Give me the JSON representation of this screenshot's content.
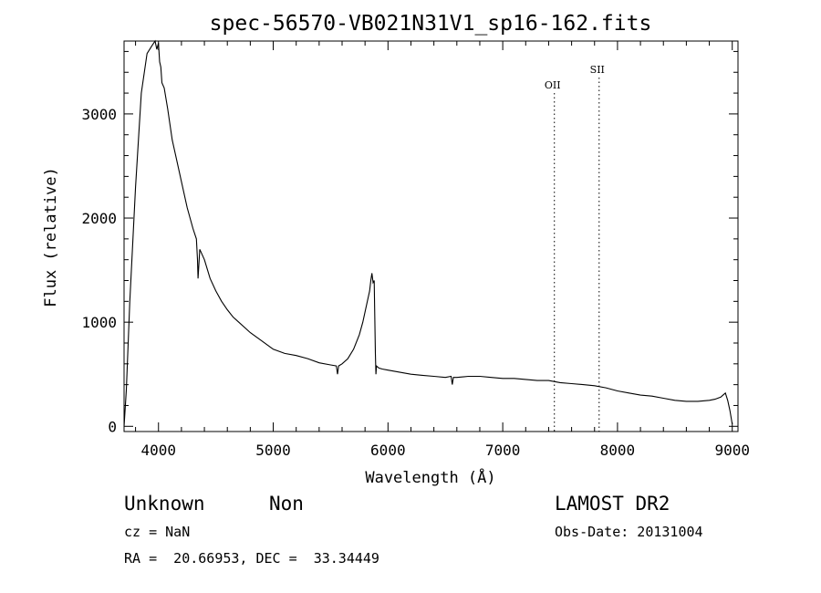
{
  "chart_data": {
    "type": "line",
    "title": "spec-56570-VB021N31V1_sp16-162.fits",
    "xlabel": "Wavelength (Å)",
    "ylabel": "Flux (relative)",
    "xlim": [
      3700,
      9050
    ],
    "ylim": [
      -50,
      3700
    ],
    "x_ticks": [
      4000,
      5000,
      6000,
      7000,
      8000,
      9000
    ],
    "y_ticks": [
      0,
      1000,
      2000,
      3000
    ],
    "grid": false,
    "series": [
      {
        "x": [
          3700,
          3720,
          3750,
          3800,
          3850,
          3900,
          3940,
          3970,
          3985,
          4000,
          4010,
          4020,
          4030,
          4050,
          4080,
          4100,
          4120,
          4150,
          4200,
          4250,
          4300,
          4330,
          4340,
          4345,
          4360,
          4400,
          4450,
          4500,
          4550,
          4600,
          4650,
          4700,
          4800,
          4900,
          5000,
          5100,
          5200,
          5300,
          5400,
          5500,
          5550,
          5560,
          5570,
          5600,
          5650,
          5700,
          5750,
          5780,
          5800,
          5820,
          5840,
          5850,
          5860,
          5870,
          5880,
          5890,
          5895,
          5900,
          5920,
          5950,
          6000,
          6100,
          6200,
          6300,
          6400,
          6500,
          6550,
          6560,
          6570,
          6600,
          6700,
          6800,
          6900,
          7000,
          7100,
          7200,
          7300,
          7400,
          7500,
          7600,
          7700,
          7800,
          7900,
          8000,
          8100,
          8200,
          8300,
          8400,
          8500,
          8600,
          8700,
          8800,
          8850,
          8900,
          8920,
          8940,
          8960,
          8980,
          9000
        ],
        "y": [
          0,
          350,
          1200,
          2300,
          3200,
          3580,
          3650,
          3700,
          3620,
          3680,
          3500,
          3450,
          3300,
          3250,
          3050,
          2900,
          2750,
          2600,
          2350,
          2100,
          1900,
          1800,
          1600,
          1420,
          1700,
          1600,
          1420,
          1300,
          1200,
          1120,
          1050,
          1000,
          900,
          820,
          740,
          700,
          680,
          650,
          610,
          590,
          580,
          500,
          580,
          600,
          650,
          740,
          880,
          1000,
          1100,
          1200,
          1300,
          1400,
          1470,
          1380,
          1400,
          700,
          500,
          580,
          560,
          550,
          540,
          520,
          500,
          490,
          480,
          470,
          480,
          400,
          470,
          470,
          480,
          480,
          470,
          460,
          460,
          450,
          440,
          440,
          420,
          410,
          400,
          390,
          370,
          340,
          320,
          300,
          290,
          270,
          250,
          240,
          240,
          250,
          260,
          280,
          300,
          320,
          250,
          150,
          20
        ]
      }
    ],
    "annotations": [
      {
        "label": "OII",
        "x": 7450
      },
      {
        "label": "SII",
        "x": 7840
      }
    ]
  },
  "info": {
    "class": "Unknown",
    "subclass": "Non",
    "survey": "LAMOST DR2",
    "cz": "cz = NaN",
    "obs_date": "Obs-Date: 20131004",
    "coords": "RA =  20.66953, DEC =  33.34449"
  }
}
